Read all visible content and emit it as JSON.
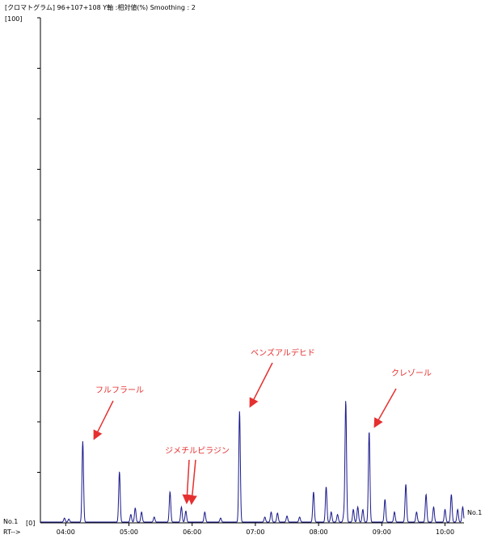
{
  "header": {
    "title": "[クロマトグラム] 96+107+108 Y軸 :相対値(%) Smoothing : 2"
  },
  "chart_data": {
    "type": "line",
    "title": "",
    "xlabel": "RT-->",
    "ylabel": "",
    "y_top_label": "[100]",
    "y_bottom_label": "[0]",
    "series_label_left": "No.1",
    "series_label_right": "No.1",
    "xlim": [
      3.6,
      10.3
    ],
    "ylim": [
      0,
      100
    ],
    "x_ticks": [
      {
        "value": 4.0,
        "label": "04:00"
      },
      {
        "value": 5.0,
        "label": "05:00"
      },
      {
        "value": 6.0,
        "label": "06:00"
      },
      {
        "value": 7.0,
        "label": "07:00"
      },
      {
        "value": 8.0,
        "label": "08:00"
      },
      {
        "value": 9.0,
        "label": "09:00"
      },
      {
        "value": 10.0,
        "label": "10:00"
      }
    ],
    "grid": false,
    "line_color": "#1a1a8c",
    "annotation_color": "#e53030",
    "peaks": [
      {
        "x": 3.98,
        "y": 0.8
      },
      {
        "x": 4.05,
        "y": 0.6
      },
      {
        "x": 4.27,
        "y": 16.0
      },
      {
        "x": 4.85,
        "y": 10.0
      },
      {
        "x": 5.03,
        "y": 1.5
      },
      {
        "x": 5.1,
        "y": 2.8
      },
      {
        "x": 5.2,
        "y": 2.0
      },
      {
        "x": 5.4,
        "y": 1.0
      },
      {
        "x": 5.65,
        "y": 6.0
      },
      {
        "x": 5.83,
        "y": 3.0
      },
      {
        "x": 5.9,
        "y": 2.2
      },
      {
        "x": 6.2,
        "y": 2.0
      },
      {
        "x": 6.45,
        "y": 0.8
      },
      {
        "x": 6.75,
        "y": 22.0
      },
      {
        "x": 7.15,
        "y": 1.0
      },
      {
        "x": 7.25,
        "y": 2.0
      },
      {
        "x": 7.35,
        "y": 1.8
      },
      {
        "x": 7.5,
        "y": 1.2
      },
      {
        "x": 7.7,
        "y": 1.0
      },
      {
        "x": 7.92,
        "y": 6.0
      },
      {
        "x": 8.12,
        "y": 7.0
      },
      {
        "x": 8.2,
        "y": 2.0
      },
      {
        "x": 8.3,
        "y": 1.5
      },
      {
        "x": 8.4,
        "y": 1.5
      },
      {
        "x": 8.43,
        "y": 24.0
      },
      {
        "x": 8.55,
        "y": 2.5
      },
      {
        "x": 8.62,
        "y": 3.0
      },
      {
        "x": 8.7,
        "y": 2.5
      },
      {
        "x": 8.8,
        "y": 18.0
      },
      {
        "x": 9.05,
        "y": 4.5
      },
      {
        "x": 9.2,
        "y": 2.0
      },
      {
        "x": 9.38,
        "y": 7.5
      },
      {
        "x": 9.55,
        "y": 2.0
      },
      {
        "x": 9.7,
        "y": 5.5
      },
      {
        "x": 9.82,
        "y": 3.0
      },
      {
        "x": 10.0,
        "y": 2.5
      },
      {
        "x": 10.1,
        "y": 5.5
      },
      {
        "x": 10.2,
        "y": 2.5
      },
      {
        "x": 10.28,
        "y": 3.0
      }
    ],
    "annotations": [
      {
        "text": "フルフラール",
        "x": 4.27
      },
      {
        "text": "ジメチルピラジン",
        "x": 5.86
      },
      {
        "text": "ベンズアルデヒド",
        "x": 6.75
      },
      {
        "text": "クレゾール",
        "x": 8.8
      }
    ]
  }
}
